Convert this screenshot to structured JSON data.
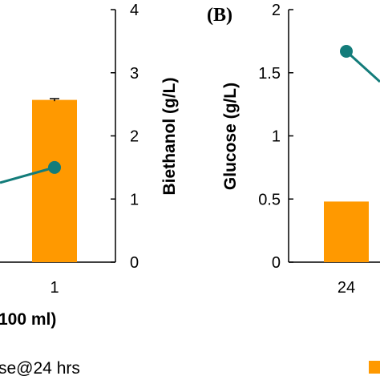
{
  "chart_data": [
    {
      "panel": "",
      "type": "bar+line",
      "categories": [
        "1"
      ],
      "xlabel": "100 ml)",
      "ylabel_right": "Biethanol  (g/L)",
      "ylim_right": [
        0,
        4
      ],
      "yticks_right": [
        "0",
        "1",
        "2",
        "3",
        "4"
      ],
      "bar_series": {
        "values": [
          2.57
        ],
        "error": [
          0.02
        ],
        "color": "#FF9900"
      },
      "line_series": {
        "values": [
          1.5
        ],
        "color": "#137C7A"
      },
      "legend": "se@24 hrs"
    },
    {
      "panel": "(B)",
      "type": "bar+line",
      "categories": [
        "24"
      ],
      "ylabel_left": "Glucose (g/L)",
      "ylim_left": [
        0,
        2
      ],
      "yticks_left": [
        "0",
        "0.5",
        "1",
        "1.5",
        "2"
      ],
      "bar_series": {
        "values": [
          0.48
        ],
        "color": "#FF9900"
      },
      "line_series": {
        "values": [
          1.67
        ],
        "color": "#137C7A"
      }
    }
  ]
}
